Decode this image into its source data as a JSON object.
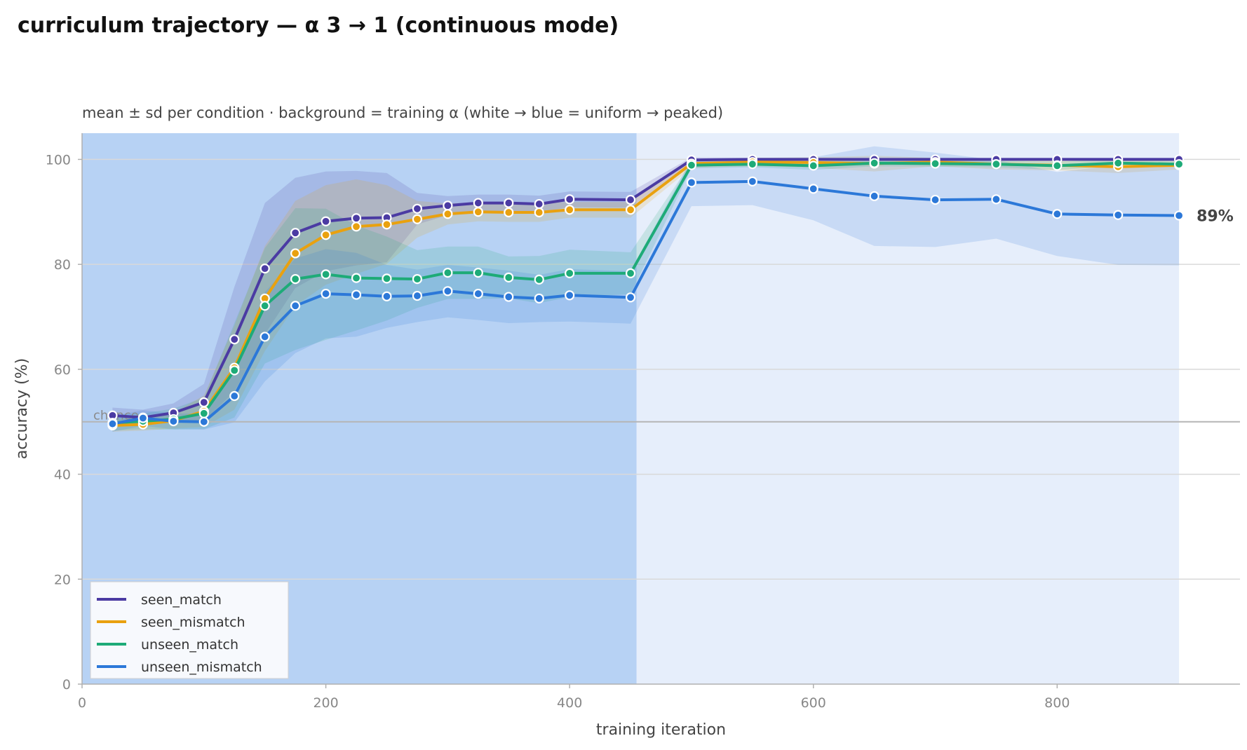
{
  "chart_data": {
    "type": "line",
    "title": "curriculum trajectory — α 3 → 1 (continuous mode)",
    "subtitle": "mean ± sd per condition · background = training α (white → blue = uniform → peaked)",
    "xlabel": "training iteration",
    "ylabel": "accuracy (%)",
    "xlim": [
      0,
      950
    ],
    "ylim": [
      0,
      105
    ],
    "xticks": [
      0,
      200,
      400,
      600,
      800
    ],
    "yticks": [
      0,
      20,
      40,
      60,
      80,
      100
    ],
    "grid": "horizontal",
    "legend_position": "lower-left",
    "reference_line": {
      "label": "chance",
      "y": 50
    },
    "background_bands": [
      {
        "x_start": 0,
        "x_end": 455,
        "color": "#b7d2f4"
      },
      {
        "x_start": 455,
        "x_end": 900,
        "color": "#e6eefb"
      }
    ],
    "end_annotation": {
      "series": "unseen_mismatch",
      "text": "89%"
    },
    "x": [
      25,
      50,
      75,
      100,
      125,
      150,
      175,
      200,
      225,
      250,
      275,
      300,
      325,
      350,
      375,
      400,
      450,
      500,
      550,
      600,
      650,
      700,
      750,
      800,
      850,
      900
    ],
    "series": [
      {
        "name": "seen_match",
        "color": "#4b3ba3",
        "values": [
          51.2,
          50.8,
          51.7,
          53.7,
          65.7,
          79.2,
          86.0,
          88.2,
          88.8,
          88.9,
          90.6,
          91.2,
          91.7,
          91.7,
          91.5,
          92.4,
          92.3,
          99.9,
          100,
          100,
          100,
          100,
          100,
          100,
          100,
          100
        ],
        "sd": [
          1.5,
          1.5,
          1.8,
          3.5,
          10,
          12.5,
          10.5,
          9.5,
          9.0,
          8.5,
          3.0,
          1.8,
          1.6,
          1.6,
          1.6,
          1.5,
          1.5,
          0.5,
          0.3,
          0.3,
          0.3,
          0.3,
          0.3,
          0.3,
          0.3,
          0.3
        ]
      },
      {
        "name": "seen_mismatch",
        "color": "#e9a10f",
        "values": [
          49.3,
          49.5,
          50.2,
          52.0,
          60.3,
          73.5,
          82.1,
          85.6,
          87.2,
          87.6,
          88.6,
          89.6,
          90.0,
          89.9,
          89.9,
          90.4,
          90.4,
          99.2,
          99.5,
          99.4,
          99.2,
          99.5,
          99.1,
          98.9,
          98.6,
          98.9
        ],
        "sd": [
          1.2,
          1.2,
          1.5,
          3.0,
          8.0,
          10.0,
          10.0,
          9.5,
          9.0,
          7.5,
          3.5,
          2.0,
          1.8,
          1.8,
          1.8,
          1.5,
          1.5,
          0.8,
          0.8,
          1.0,
          1.5,
          0.8,
          1.0,
          1.0,
          1.2,
          0.8
        ]
      },
      {
        "name": "unseen_match",
        "color": "#1eab78",
        "values": [
          49.8,
          50.1,
          50.5,
          51.6,
          59.8,
          72.1,
          77.2,
          78.1,
          77.4,
          77.3,
          77.2,
          78.4,
          78.4,
          77.5,
          77.1,
          78.3,
          78.3,
          98.9,
          99.1,
          98.8,
          99.3,
          99.2,
          99.1,
          98.8,
          99.3,
          99.1
        ],
        "sd": [
          1.5,
          1.5,
          2.0,
          3.0,
          9.0,
          11.0,
          13.5,
          12.5,
          10.0,
          8.0,
          5.5,
          5.0,
          5.0,
          4.0,
          4.5,
          4.5,
          4.0,
          0.6,
          0.6,
          0.8,
          0.6,
          0.6,
          0.6,
          0.8,
          0.6,
          0.6
        ]
      },
      {
        "name": "unseen_mismatch",
        "color": "#2c78d8",
        "values": [
          49.6,
          50.7,
          50.1,
          50.0,
          54.9,
          66.2,
          72.1,
          74.4,
          74.2,
          73.9,
          74.0,
          74.9,
          74.4,
          73.8,
          73.5,
          74.1,
          73.7,
          95.6,
          95.8,
          94.4,
          93.0,
          92.3,
          92.4,
          89.6,
          89.4,
          89.3
        ],
        "sd": [
          1.5,
          1.5,
          1.5,
          1.5,
          5.0,
          8.5,
          9.0,
          8.5,
          8.0,
          6.0,
          5.0,
          5.0,
          5.0,
          5.0,
          4.5,
          5.0,
          5.0,
          4.5,
          4.5,
          6.0,
          9.5,
          9.0,
          7.5,
          8.0,
          9.5,
          9.5
        ]
      }
    ]
  }
}
